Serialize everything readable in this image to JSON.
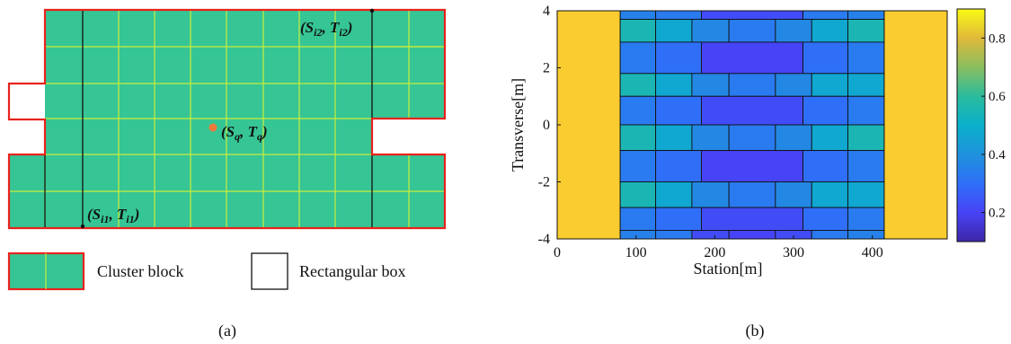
{
  "panel_a": {
    "label_point_1": "(S",
    "label_point_1_sub1": "i1",
    "label_point_1_mid": ", T",
    "label_point_1_sub2": "i1",
    "label_point_1_end": ")",
    "label_point_2": "(S",
    "label_point_2_sub1": "i2",
    "label_point_2_mid": ", T",
    "label_point_2_sub2": "i2",
    "label_point_2_end": ")",
    "label_query": "(S",
    "label_query_sub1": "q",
    "label_query_mid": ", T",
    "label_query_sub2": "q",
    "label_query_end": ")",
    "legend_cluster": "Cluster block",
    "legend_rect": "Rectangular box",
    "caption": "(a)",
    "colors": {
      "cell": "#36c594",
      "grid": "#c8ee3c",
      "outline": "#e8231d",
      "query_dot": "#f07a3c"
    }
  },
  "panel_b": {
    "caption": "(b)",
    "colorbar_ticks": [
      "0.2",
      "0.4",
      "0.6",
      "0.8"
    ]
  },
  "chart_data": {
    "type": "heatmap",
    "xlabel": "Station[m]",
    "ylabel": "Transverse[m]",
    "xlim": [
      0,
      495
    ],
    "ylim": [
      -4,
      4
    ],
    "xticks": [
      0,
      100,
      200,
      300,
      400
    ],
    "yticks": [
      -4,
      -2,
      0,
      2,
      4
    ],
    "colorbar": {
      "min": 0.1,
      "max": 0.9,
      "ticks": [
        0.2,
        0.4,
        0.6,
        0.8
      ]
    },
    "blocks": [
      {
        "x0": 0,
        "x1": 80,
        "y0": -4,
        "y1": 4,
        "v": 0.82
      },
      {
        "x0": 415,
        "x1": 495,
        "y0": -4,
        "y1": 4,
        "v": 0.82
      },
      {
        "x0": 80,
        "x1": 125,
        "y0": 3.7,
        "y1": 4,
        "v": 0.35
      },
      {
        "x0": 125,
        "x1": 183,
        "y0": 3.7,
        "y1": 4,
        "v": 0.33
      },
      {
        "x0": 183,
        "x1": 312,
        "y0": 3.7,
        "y1": 4,
        "v": 0.22
      },
      {
        "x0": 312,
        "x1": 369,
        "y0": 3.7,
        "y1": 4,
        "v": 0.33
      },
      {
        "x0": 369,
        "x1": 415,
        "y0": 3.7,
        "y1": 4,
        "v": 0.35
      },
      {
        "x0": 80,
        "x1": 125,
        "y0": 2.9,
        "y1": 3.7,
        "v": 0.55
      },
      {
        "x0": 125,
        "x1": 171,
        "y0": 2.9,
        "y1": 3.7,
        "v": 0.47
      },
      {
        "x0": 171,
        "x1": 218,
        "y0": 2.9,
        "y1": 3.7,
        "v": 0.37
      },
      {
        "x0": 218,
        "x1": 277,
        "y0": 2.9,
        "y1": 3.7,
        "v": 0.33
      },
      {
        "x0": 277,
        "x1": 323,
        "y0": 2.9,
        "y1": 3.7,
        "v": 0.37
      },
      {
        "x0": 323,
        "x1": 369,
        "y0": 2.9,
        "y1": 3.7,
        "v": 0.47
      },
      {
        "x0": 369,
        "x1": 415,
        "y0": 2.9,
        "y1": 3.7,
        "v": 0.55
      },
      {
        "x0": 80,
        "x1": 125,
        "y0": 1.8,
        "y1": 2.9,
        "v": 0.33
      },
      {
        "x0": 125,
        "x1": 183,
        "y0": 1.8,
        "y1": 2.9,
        "v": 0.3
      },
      {
        "x0": 183,
        "x1": 312,
        "y0": 1.8,
        "y1": 2.9,
        "v": 0.2
      },
      {
        "x0": 312,
        "x1": 369,
        "y0": 1.8,
        "y1": 2.9,
        "v": 0.3
      },
      {
        "x0": 369,
        "x1": 415,
        "y0": 1.8,
        "y1": 2.9,
        "v": 0.33
      },
      {
        "x0": 80,
        "x1": 125,
        "y0": 1.0,
        "y1": 1.8,
        "v": 0.55
      },
      {
        "x0": 125,
        "x1": 171,
        "y0": 1.0,
        "y1": 1.8,
        "v": 0.47
      },
      {
        "x0": 171,
        "x1": 218,
        "y0": 1.0,
        "y1": 1.8,
        "v": 0.37
      },
      {
        "x0": 218,
        "x1": 277,
        "y0": 1.0,
        "y1": 1.8,
        "v": 0.33
      },
      {
        "x0": 277,
        "x1": 323,
        "y0": 1.0,
        "y1": 1.8,
        "v": 0.37
      },
      {
        "x0": 323,
        "x1": 369,
        "y0": 1.0,
        "y1": 1.8,
        "v": 0.47
      },
      {
        "x0": 369,
        "x1": 415,
        "y0": 1.0,
        "y1": 1.8,
        "v": 0.47
      },
      {
        "x0": 80,
        "x1": 125,
        "y0": 0.0,
        "y1": 1.0,
        "v": 0.33
      },
      {
        "x0": 125,
        "x1": 183,
        "y0": 0.0,
        "y1": 1.0,
        "v": 0.3
      },
      {
        "x0": 183,
        "x1": 312,
        "y0": 0.0,
        "y1": 1.0,
        "v": 0.22
      },
      {
        "x0": 312,
        "x1": 369,
        "y0": 0.0,
        "y1": 1.0,
        "v": 0.3
      },
      {
        "x0": 369,
        "x1": 415,
        "y0": 0.0,
        "y1": 1.0,
        "v": 0.33
      },
      {
        "x0": 80,
        "x1": 125,
        "y0": -0.9,
        "y1": 0.0,
        "v": 0.55
      },
      {
        "x0": 125,
        "x1": 171,
        "y0": -0.9,
        "y1": 0.0,
        "v": 0.47
      },
      {
        "x0": 171,
        "x1": 218,
        "y0": -0.9,
        "y1": 0.0,
        "v": 0.37
      },
      {
        "x0": 218,
        "x1": 277,
        "y0": -0.9,
        "y1": 0.0,
        "v": 0.33
      },
      {
        "x0": 277,
        "x1": 323,
        "y0": -0.9,
        "y1": 0.0,
        "v": 0.37
      },
      {
        "x0": 323,
        "x1": 369,
        "y0": -0.9,
        "y1": 0.0,
        "v": 0.47
      },
      {
        "x0": 369,
        "x1": 415,
        "y0": -0.9,
        "y1": 0.0,
        "v": 0.55
      },
      {
        "x0": 80,
        "x1": 125,
        "y0": -2.0,
        "y1": -0.9,
        "v": 0.33
      },
      {
        "x0": 125,
        "x1": 183,
        "y0": -2.0,
        "y1": -0.9,
        "v": 0.3
      },
      {
        "x0": 183,
        "x1": 312,
        "y0": -2.0,
        "y1": -0.9,
        "v": 0.2
      },
      {
        "x0": 312,
        "x1": 369,
        "y0": -2.0,
        "y1": -0.9,
        "v": 0.3
      },
      {
        "x0": 369,
        "x1": 415,
        "y0": -2.0,
        "y1": -0.9,
        "v": 0.33
      },
      {
        "x0": 80,
        "x1": 125,
        "y0": -2.9,
        "y1": -2.0,
        "v": 0.55
      },
      {
        "x0": 125,
        "x1": 171,
        "y0": -2.9,
        "y1": -2.0,
        "v": 0.47
      },
      {
        "x0": 171,
        "x1": 218,
        "y0": -2.9,
        "y1": -2.0,
        "v": 0.37
      },
      {
        "x0": 218,
        "x1": 277,
        "y0": -2.9,
        "y1": -2.0,
        "v": 0.33
      },
      {
        "x0": 277,
        "x1": 323,
        "y0": -2.9,
        "y1": -2.0,
        "v": 0.37
      },
      {
        "x0": 323,
        "x1": 369,
        "y0": -2.9,
        "y1": -2.0,
        "v": 0.47
      },
      {
        "x0": 369,
        "x1": 415,
        "y0": -2.9,
        "y1": -2.0,
        "v": 0.47
      },
      {
        "x0": 80,
        "x1": 125,
        "y0": -3.7,
        "y1": -2.9,
        "v": 0.33
      },
      {
        "x0": 125,
        "x1": 183,
        "y0": -3.7,
        "y1": -2.9,
        "v": 0.3
      },
      {
        "x0": 183,
        "x1": 312,
        "y0": -3.7,
        "y1": -2.9,
        "v": 0.22
      },
      {
        "x0": 312,
        "x1": 369,
        "y0": -3.7,
        "y1": -2.9,
        "v": 0.3
      },
      {
        "x0": 369,
        "x1": 415,
        "y0": -3.7,
        "y1": -2.9,
        "v": 0.33
      },
      {
        "x0": 80,
        "x1": 125,
        "y0": -4,
        "y1": -3.7,
        "v": 0.35
      },
      {
        "x0": 125,
        "x1": 171,
        "y0": -4,
        "y1": -3.7,
        "v": 0.33
      },
      {
        "x0": 171,
        "x1": 218,
        "y0": -4,
        "y1": -3.7,
        "v": 0.22
      },
      {
        "x0": 218,
        "x1": 277,
        "y0": -4,
        "y1": -3.7,
        "v": 0.2
      },
      {
        "x0": 277,
        "x1": 323,
        "y0": -4,
        "y1": -3.7,
        "v": 0.22
      },
      {
        "x0": 323,
        "x1": 369,
        "y0": -4,
        "y1": -3.7,
        "v": 0.33
      },
      {
        "x0": 369,
        "x1": 415,
        "y0": -4,
        "y1": -3.7,
        "v": 0.35
      }
    ]
  }
}
